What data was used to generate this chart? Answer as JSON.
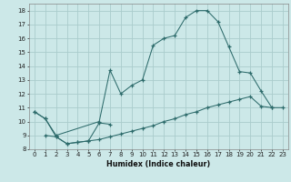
{
  "xlabel": "Humidex (Indice chaleur)",
  "background_color": "#cce8e8",
  "grid_color": "#aacccc",
  "line_color": "#2d6b6b",
  "xlim": [
    -0.5,
    23.5
  ],
  "ylim": [
    8.0,
    18.5
  ],
  "xticks": [
    0,
    1,
    2,
    3,
    4,
    5,
    6,
    7,
    8,
    9,
    10,
    11,
    12,
    13,
    14,
    15,
    16,
    17,
    18,
    19,
    20,
    21,
    22,
    23
  ],
  "yticks": [
    8,
    9,
    10,
    11,
    12,
    13,
    14,
    15,
    16,
    17,
    18
  ],
  "c1x": [
    0,
    1,
    2,
    3,
    4,
    5,
    6,
    7
  ],
  "c1y": [
    10.7,
    10.2,
    8.9,
    8.4,
    8.5,
    8.6,
    9.9,
    9.8
  ],
  "c2x": [
    0,
    1,
    2,
    6,
    7,
    8,
    9,
    10,
    11,
    12,
    13,
    14,
    15,
    16,
    17,
    18,
    19,
    20,
    21,
    22
  ],
  "c2y": [
    10.7,
    10.2,
    9.0,
    10.0,
    13.7,
    12.0,
    12.6,
    13.0,
    15.5,
    16.0,
    16.2,
    17.5,
    18.0,
    18.0,
    17.2,
    15.4,
    13.6,
    13.5,
    12.2,
    11.0
  ],
  "c3x": [
    1,
    2,
    3,
    4,
    5,
    6,
    7,
    8,
    9,
    10,
    11,
    12,
    13,
    14,
    15,
    16,
    17,
    18,
    19,
    20,
    21,
    22,
    23
  ],
  "c3y": [
    9.0,
    8.9,
    8.4,
    8.5,
    8.6,
    8.7,
    8.9,
    9.1,
    9.3,
    9.5,
    9.7,
    10.0,
    10.2,
    10.5,
    10.7,
    11.0,
    11.2,
    11.4,
    11.6,
    11.8,
    11.1,
    11.0,
    11.0
  ]
}
